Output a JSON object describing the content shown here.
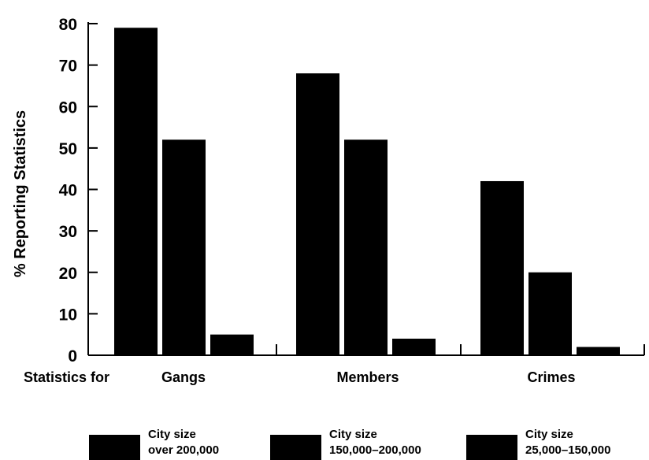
{
  "chart_data": {
    "type": "bar",
    "ylabel": "% Reporting Statistics",
    "xlabel_prefix": "Statistics for",
    "categories": [
      "Gangs",
      "Members",
      "Crimes"
    ],
    "ylim": [
      0,
      80
    ],
    "yticks": [
      0,
      10,
      20,
      30,
      40,
      50,
      60,
      70,
      80
    ],
    "grid": false,
    "legend_position": "bottom",
    "series": [
      {
        "name_line1": "City size",
        "name_line2": "over 200,000",
        "values": [
          79,
          68,
          42
        ]
      },
      {
        "name_line1": "City size",
        "name_line2": "150,000–200,000",
        "values": [
          52,
          52,
          20
        ]
      },
      {
        "name_line1": "City size",
        "name_line2": "25,000–150,000",
        "values": [
          5,
          4,
          2
        ]
      }
    ],
    "colors": [
      "#000000",
      "#000000",
      "#000000"
    ]
  }
}
